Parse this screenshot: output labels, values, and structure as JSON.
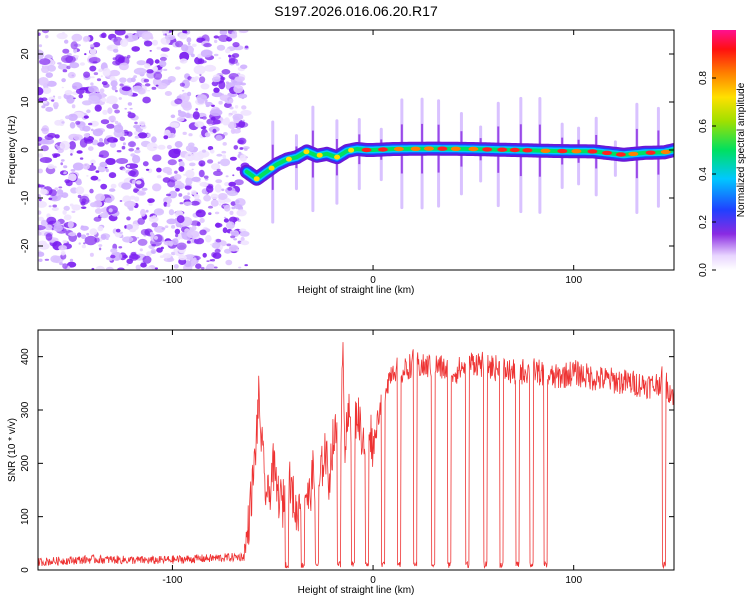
{
  "title": "S197.2026.016.06.20.R17",
  "colors": {
    "snr_line": "#ee3333",
    "noise_dot": "#7a1cf0"
  },
  "chart_data": [
    {
      "type": "heatmap",
      "xlabel": "Height of straight line (km)",
      "ylabel": "Frequency (Hz)",
      "xlim": [
        -167,
        150
      ],
      "ylim": [
        -25,
        25
      ],
      "x_ticks": [
        -100,
        0,
        100
      ],
      "y_ticks": [
        -20,
        -10,
        0,
        10,
        20
      ],
      "x_tick_labels": [
        "-100",
        "0",
        "100"
      ],
      "y_tick_labels": [
        "-20",
        "-10",
        "0",
        "10",
        "20"
      ],
      "noise_region_x": [
        -167,
        -63
      ],
      "signal_track": {
        "x": [
          -63,
          -58,
          -53,
          -48,
          -43,
          -38,
          -33,
          -28,
          -23,
          -18,
          -13,
          -8,
          -3,
          0,
          10,
          30,
          50,
          70,
          90,
          110,
          125,
          135,
          145,
          150
        ],
        "freq": [
          -4.5,
          -6.0,
          -4.5,
          -3.0,
          -2.0,
          -1.5,
          -0.3,
          -1.2,
          -0.8,
          -1.5,
          -0.2,
          0.2,
          0.0,
          0.0,
          0.2,
          0.3,
          0.2,
          0.0,
          -0.2,
          -0.3,
          -1.0,
          -0.6,
          -0.5,
          0.0
        ]
      },
      "colorbar": {
        "label": "Normalized spectral amplitude",
        "range": [
          0,
          1
        ],
        "ticks": [
          0.0,
          0.2,
          0.4,
          0.6,
          0.8
        ],
        "tick_labels": [
          "0.0",
          "0.2",
          "0.4",
          "0.6",
          "0.8"
        ]
      }
    },
    {
      "type": "line",
      "xlabel": "Height of straight line (km)",
      "ylabel": "SNR (10 * v/v)",
      "xlim": [
        -167,
        150
      ],
      "ylim": [
        0,
        450
      ],
      "x_ticks": [
        -100,
        0,
        100
      ],
      "y_ticks": [
        0,
        100,
        200,
        300,
        400
      ],
      "x_tick_labels": [
        "-100",
        "0",
        "100"
      ],
      "y_tick_labels": [
        "0",
        "100",
        "200",
        "300",
        "400"
      ],
      "series": [
        {
          "name": "SNR",
          "x": [
            -167,
            -140,
            -110,
            -80,
            -64,
            -62,
            -59,
            -57,
            -54,
            -52,
            -50,
            -48,
            -45,
            -43,
            -40,
            -38,
            -35,
            -32,
            -30,
            -27,
            -24,
            -22,
            -20,
            -18,
            -16,
            -15,
            -14,
            -12,
            -10,
            -8,
            -6,
            -4,
            -2,
            0,
            3,
            6,
            10,
            15,
            20,
            25,
            30,
            40,
            50,
            60,
            70,
            80,
            90,
            100,
            110,
            120,
            130,
            140,
            145,
            147,
            150
          ],
          "y": [
            15,
            20,
            18,
            22,
            25,
            90,
            200,
            320,
            160,
            130,
            200,
            150,
            120,
            180,
            140,
            100,
            160,
            130,
            180,
            150,
            230,
            170,
            240,
            260,
            280,
            440,
            230,
            290,
            250,
            300,
            260,
            240,
            280,
            230,
            300,
            340,
            380,
            370,
            390,
            380,
            385,
            370,
            390,
            380,
            370,
            375,
            360,
            370,
            360,
            355,
            350,
            345,
            360,
            340,
            330
          ]
        }
      ],
      "dropouts_x": [
        -43,
        -35,
        -28,
        -17,
        -10,
        -3,
        5,
        13,
        21,
        30,
        38,
        47,
        56,
        64,
        72,
        79,
        86,
        145
      ]
    }
  ]
}
